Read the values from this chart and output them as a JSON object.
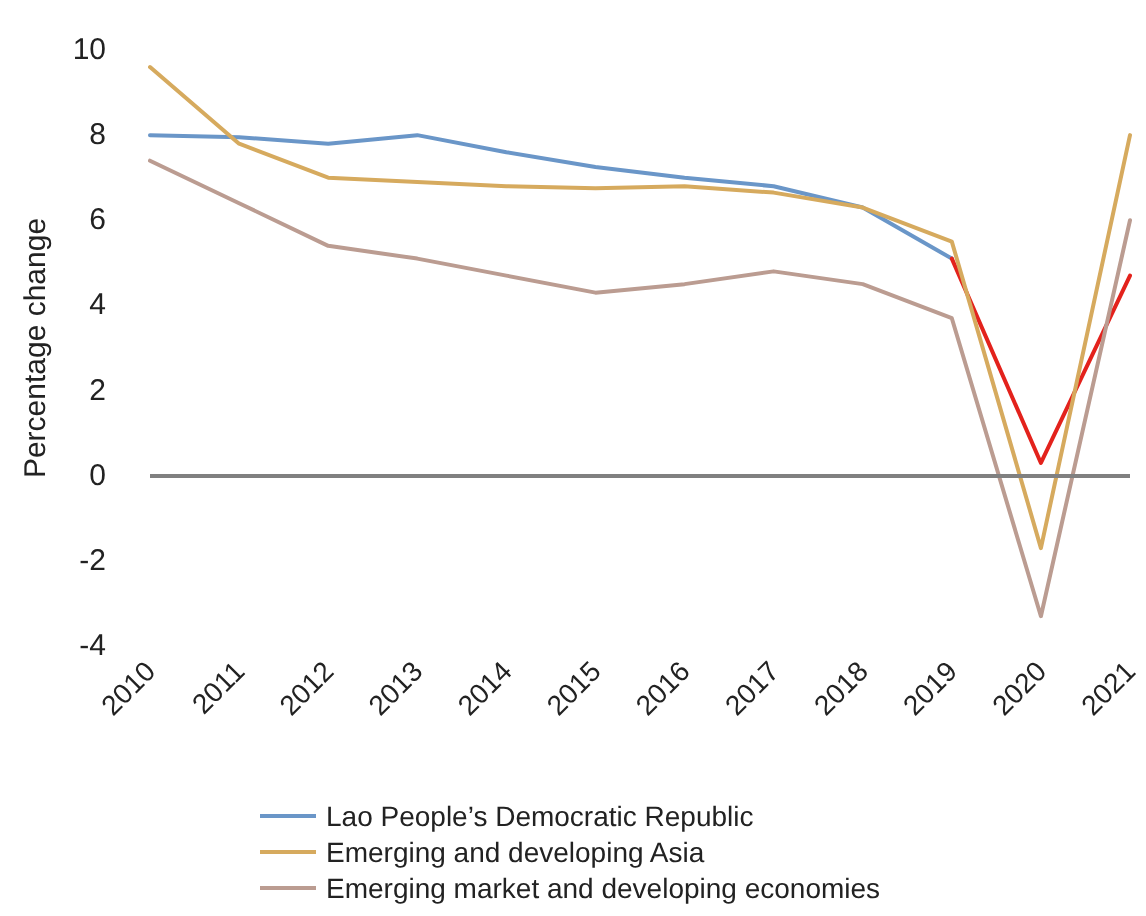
{
  "chart_data": {
    "type": "line",
    "ylabel": "Percentage change",
    "categories": [
      "2010",
      "2011",
      "2012",
      "2013",
      "2014",
      "2015",
      "2016",
      "2017",
      "2018",
      "2019",
      "2020",
      "2021"
    ],
    "series": [
      {
        "name": "Lao People’s Democratic Republic",
        "color": "#6a96c8",
        "values": [
          8.0,
          7.95,
          7.8,
          8.0,
          7.6,
          7.25,
          7.0,
          6.8,
          6.3,
          5.1,
          null,
          null
        ]
      },
      {
        "color": "#e3221c",
        "values": [
          null,
          null,
          null,
          null,
          null,
          null,
          null,
          null,
          null,
          5.1,
          0.3,
          4.7
        ]
      },
      {
        "name": "Emerging and developing Asia",
        "color": "#d6aa5e",
        "values": [
          9.6,
          7.8,
          7.0,
          6.9,
          6.8,
          6.75,
          6.8,
          6.65,
          6.3,
          5.5,
          -1.7,
          8.0
        ]
      },
      {
        "name": "Emerging market and developing economies",
        "color": "#bb9c91",
        "values": [
          7.4,
          6.4,
          5.4,
          5.1,
          4.7,
          4.3,
          4.5,
          4.8,
          4.5,
          3.7,
          -3.3,
          6.0
        ]
      }
    ],
    "ylim": [
      -4,
      10
    ],
    "yticks": [
      -4,
      -2,
      0,
      2,
      4,
      6,
      8,
      10
    ],
    "ref_lines": [
      {
        "axis": "y",
        "value": 0,
        "color": "#808080"
      }
    ],
    "grid": false,
    "legend": "bottom",
    "marker": "none",
    "line_style": "solid"
  }
}
